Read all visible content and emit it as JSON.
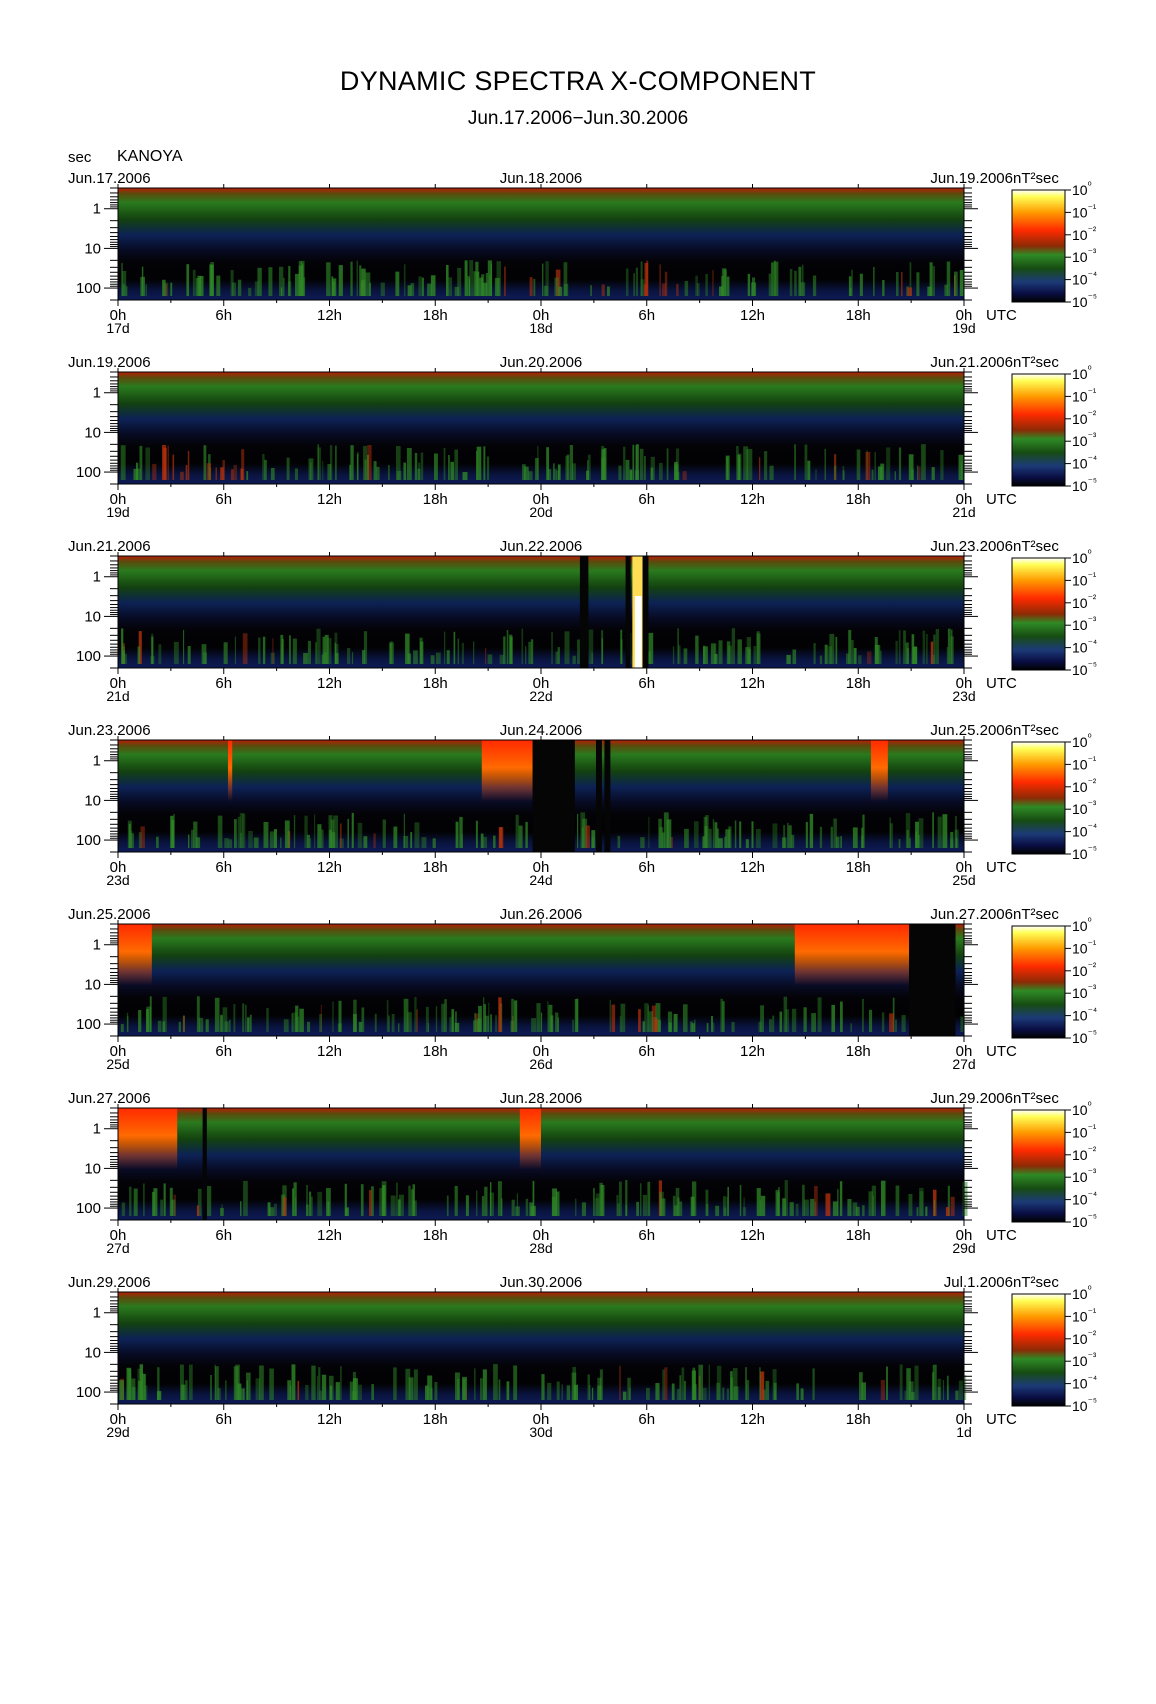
{
  "chart_data": {
    "type": "heatmap",
    "title": "DYNAMIC SPECTRA X-COMPONENT",
    "subtitle": "Jun.17.2006−Jun.30.2006",
    "y_unit": "sec",
    "station": "KANOYA",
    "colorbar_unit": "nT²sec",
    "ylabel_ticks": [
      "1",
      "10",
      "100"
    ],
    "y_range_sec": [
      0.3,
      200
    ],
    "x_ticks": [
      "0h",
      "6h",
      "12h",
      "18h",
      "0h",
      "6h",
      "12h",
      "18h",
      "0h"
    ],
    "time_zone": "UTC",
    "colorbar_ticks": [
      "10⁰",
      "10⁻¹",
      "10⁻²",
      "10⁻³",
      "10⁻⁴",
      "10⁻⁵"
    ],
    "color_scale": [
      "#000000",
      "#0a0f45",
      "#1c3a78",
      "#174d12",
      "#2f8a26",
      "#8c2a05",
      "#ff2a00",
      "#ff9a00",
      "#ffff55",
      "#ffffff"
    ],
    "panels": [
      {
        "start_label": "Jun.17.2006",
        "mid_label": "Jun.18.2006",
        "end_label": "Jun.19.2006",
        "day_start": "17d",
        "day_mid": "18d",
        "day_end": "19d"
      },
      {
        "start_label": "Jun.19.2006",
        "mid_label": "Jun.20.2006",
        "end_label": "Jun.21.2006",
        "day_start": "19d",
        "day_mid": "20d",
        "day_end": "21d"
      },
      {
        "start_label": "Jun.21.2006",
        "mid_label": "Jun.22.2006",
        "end_label": "Jun.23.2006",
        "day_start": "21d",
        "day_mid": "22d",
        "day_end": "23d"
      },
      {
        "start_label": "Jun.23.2006",
        "mid_label": "Jun.24.2006",
        "end_label": "Jun.25.2006",
        "day_start": "23d",
        "day_mid": "24d",
        "day_end": "25d"
      },
      {
        "start_label": "Jun.25.2006",
        "mid_label": "Jun.26.2006",
        "end_label": "Jun.27.2006",
        "day_start": "25d",
        "day_mid": "26d",
        "day_end": "27d"
      },
      {
        "start_label": "Jun.27.2006",
        "mid_label": "Jun.28.2006",
        "end_label": "Jun.29.2006",
        "day_start": "27d",
        "day_mid": "28d",
        "day_end": "29d"
      },
      {
        "start_label": "Jun.29.2006",
        "mid_label": "Jun.30.2006",
        "end_label": "Jul.1.2006",
        "day_start": "29d",
        "day_mid": "30d",
        "day_end": "1d"
      }
    ]
  }
}
